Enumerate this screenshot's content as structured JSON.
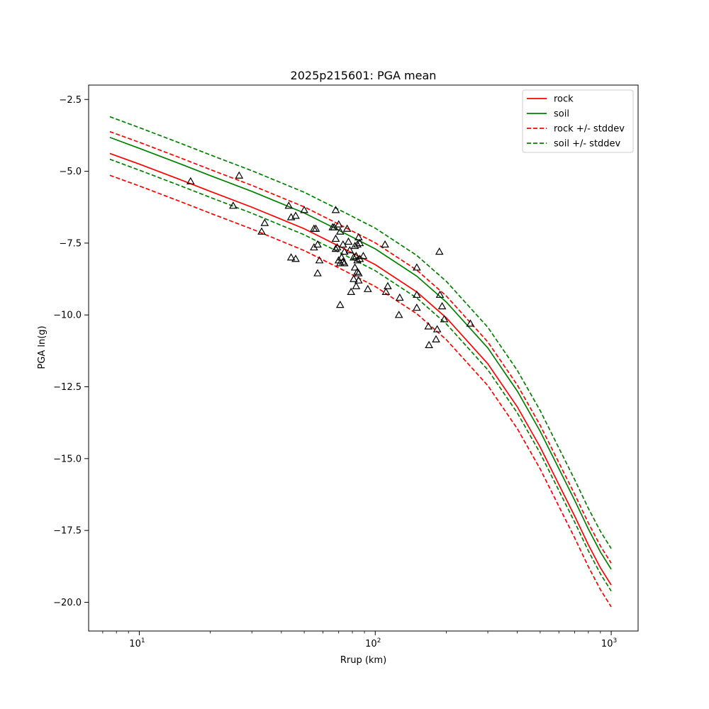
{
  "chart_data": {
    "type": "scatter",
    "title": "2025p215601: PGA mean",
    "xlabel": "Rrup (km)",
    "ylabel": "PGA ln(g)",
    "xscale": "log",
    "xlim": [
      6.1,
      1300
    ],
    "ylim": [
      -21,
      -2
    ],
    "x_ticks": [
      {
        "value": 10,
        "base": "10",
        "exp": "1"
      },
      {
        "value": 100,
        "base": "10",
        "exp": "2"
      },
      {
        "value": 1000,
        "base": "10",
        "exp": "3"
      }
    ],
    "y_ticks": [
      {
        "value": -2.5,
        "label": "−2.5"
      },
      {
        "value": -5,
        "label": "−5.0"
      },
      {
        "value": -7.5,
        "label": "−7.5"
      },
      {
        "value": -10,
        "label": "−10.0"
      },
      {
        "value": -12.5,
        "label": "−12.5"
      },
      {
        "value": -15,
        "label": "−15.0"
      },
      {
        "value": -17.5,
        "label": "−17.5"
      },
      {
        "value": -20,
        "label": "−20.0"
      }
    ],
    "grid": false,
    "legend_position": "top-right",
    "colors": {
      "rock": "#ff0000",
      "soil": "#008000",
      "marker": "#000000"
    },
    "series": [
      {
        "name": "rock",
        "style": "solid",
        "color": "#ff0000",
        "x": [
          7.5,
          10,
          15,
          20,
          30,
          50,
          70,
          100,
          150,
          200,
          300,
          400,
          500,
          600,
          700,
          800,
          900,
          1000
        ],
        "y": [
          -4.38,
          -4.75,
          -5.3,
          -5.7,
          -6.25,
          -7.0,
          -7.6,
          -8.25,
          -9.2,
          -10.1,
          -11.7,
          -13.2,
          -14.6,
          -15.9,
          -17.0,
          -18.0,
          -18.8,
          -19.4
        ]
      },
      {
        "name": "soil",
        "style": "solid",
        "color": "#008000",
        "x": [
          7.5,
          10,
          15,
          20,
          30,
          50,
          70,
          100,
          150,
          200,
          300,
          400,
          500,
          600,
          700,
          800,
          900,
          1000
        ],
        "y": [
          -3.82,
          -4.2,
          -4.75,
          -5.15,
          -5.7,
          -6.45,
          -7.05,
          -7.7,
          -8.65,
          -9.55,
          -11.15,
          -12.65,
          -14.05,
          -15.35,
          -16.45,
          -17.45,
          -18.25,
          -18.85
        ]
      },
      {
        "name": "rock +/- stddev",
        "style": "dashed",
        "color": "#ff0000",
        "x": [
          7.5,
          10,
          15,
          20,
          30,
          50,
          70,
          100,
          150,
          200,
          300,
          400,
          500,
          600,
          700,
          800,
          900,
          1000
        ],
        "y": [
          -3.62,
          -3.99,
          -4.54,
          -4.94,
          -5.49,
          -6.24,
          -6.84,
          -7.49,
          -8.44,
          -9.34,
          -10.94,
          -12.44,
          -13.84,
          -15.14,
          -16.24,
          -17.24,
          -18.04,
          -18.64
        ]
      },
      {
        "name": "rock +/- stddev lower",
        "style": "dashed",
        "color": "#ff0000",
        "x": [
          7.5,
          10,
          15,
          20,
          30,
          50,
          70,
          100,
          150,
          200,
          300,
          400,
          500,
          600,
          700,
          800,
          900,
          1000
        ],
        "y": [
          -5.14,
          -5.51,
          -6.06,
          -6.46,
          -7.01,
          -7.76,
          -8.36,
          -9.01,
          -9.96,
          -10.86,
          -12.46,
          -13.96,
          -15.36,
          -16.66,
          -17.76,
          -18.76,
          -19.56,
          -20.16
        ]
      },
      {
        "name": "soil +/- stddev",
        "style": "dashed",
        "color": "#008000",
        "x": [
          7.5,
          10,
          15,
          20,
          30,
          50,
          70,
          100,
          150,
          200,
          300,
          400,
          500,
          600,
          700,
          800,
          900,
          1000
        ],
        "y": [
          -3.1,
          -3.48,
          -4.03,
          -4.43,
          -4.98,
          -5.73,
          -6.33,
          -6.98,
          -7.93,
          -8.83,
          -10.43,
          -11.93,
          -13.33,
          -14.63,
          -15.73,
          -16.73,
          -17.53,
          -18.13
        ]
      },
      {
        "name": "soil +/- stddev lower",
        "style": "dashed",
        "color": "#008000",
        "x": [
          7.5,
          10,
          15,
          20,
          30,
          50,
          70,
          100,
          150,
          200,
          300,
          400,
          500,
          600,
          700,
          800,
          900,
          1000
        ],
        "y": [
          -4.58,
          -4.96,
          -5.51,
          -5.91,
          -6.46,
          -7.21,
          -7.81,
          -8.46,
          -9.41,
          -10.31,
          -11.91,
          -13.41,
          -14.81,
          -16.11,
          -17.21,
          -18.21,
          -19.01,
          -19.61
        ]
      }
    ],
    "legend": [
      {
        "label": "rock",
        "style": "solid",
        "color": "#ff0000"
      },
      {
        "label": "soil",
        "style": "solid",
        "color": "#008000"
      },
      {
        "label": "rock +/- stddev",
        "style": "dashed",
        "color": "#ff0000"
      },
      {
        "label": "soil +/- stddev",
        "style": "dashed",
        "color": "#008000"
      }
    ],
    "observations": {
      "marker": "open-triangle",
      "points": [
        {
          "x": 16.5,
          "y": -5.35
        },
        {
          "x": 26.5,
          "y": -5.15
        },
        {
          "x": 25,
          "y": -6.2
        },
        {
          "x": 34,
          "y": -6.8
        },
        {
          "x": 33,
          "y": -7.1
        },
        {
          "x": 43,
          "y": -6.2
        },
        {
          "x": 46,
          "y": -6.55
        },
        {
          "x": 44,
          "y": -6.6
        },
        {
          "x": 50,
          "y": -6.35
        },
        {
          "x": 44,
          "y": -8.0
        },
        {
          "x": 46,
          "y": -8.05
        },
        {
          "x": 55,
          "y": -7.0
        },
        {
          "x": 56,
          "y": -7.0
        },
        {
          "x": 57,
          "y": -7.55
        },
        {
          "x": 55,
          "y": -7.65
        },
        {
          "x": 58,
          "y": -8.1
        },
        {
          "x": 57,
          "y": -8.55
        },
        {
          "x": 66,
          "y": -6.95
        },
        {
          "x": 68,
          "y": -6.35
        },
        {
          "x": 67,
          "y": -6.95
        },
        {
          "x": 70,
          "y": -6.85
        },
        {
          "x": 71,
          "y": -7.1
        },
        {
          "x": 76,
          "y": -7.0
        },
        {
          "x": 68,
          "y": -7.35
        },
        {
          "x": 69,
          "y": -7.65
        },
        {
          "x": 68,
          "y": -7.7
        },
        {
          "x": 73,
          "y": -7.55
        },
        {
          "x": 74,
          "y": -7.8
        },
        {
          "x": 77,
          "y": -7.45
        },
        {
          "x": 78,
          "y": -7.75
        },
        {
          "x": 72,
          "y": -8.0
        },
        {
          "x": 70,
          "y": -8.1
        },
        {
          "x": 71,
          "y": -8.2
        },
        {
          "x": 73,
          "y": -8.15
        },
        {
          "x": 74,
          "y": -8.2
        },
        {
          "x": 81,
          "y": -8.0
        },
        {
          "x": 82,
          "y": -7.6
        },
        {
          "x": 84,
          "y": -7.55
        },
        {
          "x": 85,
          "y": -7.3
        },
        {
          "x": 86,
          "y": -7.5
        },
        {
          "x": 89,
          "y": -7.95
        },
        {
          "x": 83,
          "y": -7.95
        },
        {
          "x": 84,
          "y": -8.1
        },
        {
          "x": 86,
          "y": -8.05
        },
        {
          "x": 82,
          "y": -8.35
        },
        {
          "x": 84,
          "y": -8.5
        },
        {
          "x": 85,
          "y": -8.55
        },
        {
          "x": 81,
          "y": -8.75
        },
        {
          "x": 85,
          "y": -8.8
        },
        {
          "x": 83,
          "y": -9.0
        },
        {
          "x": 79,
          "y": -9.2
        },
        {
          "x": 93,
          "y": -9.1
        },
        {
          "x": 71,
          "y": -9.65
        },
        {
          "x": 110,
          "y": -7.55
        },
        {
          "x": 113,
          "y": -9.0
        },
        {
          "x": 111,
          "y": -9.2
        },
        {
          "x": 127,
          "y": -9.4
        },
        {
          "x": 126,
          "y": -10.0
        },
        {
          "x": 150,
          "y": -8.35
        },
        {
          "x": 150,
          "y": -9.3
        },
        {
          "x": 150,
          "y": -9.75
        },
        {
          "x": 187,
          "y": -7.8
        },
        {
          "x": 188,
          "y": -9.3
        },
        {
          "x": 192,
          "y": -9.7
        },
        {
          "x": 196,
          "y": -10.15
        },
        {
          "x": 168,
          "y": -10.4
        },
        {
          "x": 183,
          "y": -10.5
        },
        {
          "x": 181,
          "y": -10.85
        },
        {
          "x": 169,
          "y": -11.05
        },
        {
          "x": 253,
          "y": -10.3
        }
      ]
    }
  }
}
